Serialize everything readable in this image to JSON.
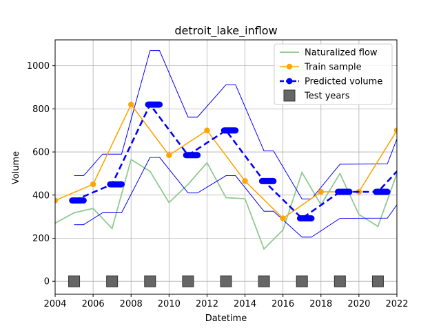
{
  "chart_data": {
    "type": "line",
    "title": "detroit_lake_inflow",
    "xlabel": "Datetime",
    "ylabel": "Volume",
    "xlim": [
      2004,
      2022
    ],
    "ylim": [
      -60,
      1120
    ],
    "x_ticks": [
      2004,
      2006,
      2008,
      2010,
      2012,
      2014,
      2016,
      2018,
      2020,
      2022
    ],
    "y_ticks": [
      0,
      200,
      400,
      600,
      800,
      1000
    ],
    "grid": true,
    "legend_position": "top-right",
    "colors": {
      "naturalized": "#8fca8f",
      "train": "#ffa500",
      "predicted": "#0000ff",
      "band": "#0000ff",
      "test_marker": "#666666"
    },
    "series": [
      {
        "name": "Naturalized flow",
        "style": "line",
        "x": [
          2004,
          2005,
          2006,
          2007,
          2008,
          2009,
          2010,
          2011,
          2012,
          2013,
          2014,
          2015,
          2016,
          2017,
          2018,
          2019,
          2020,
          2021,
          2022
        ],
        "y": [
          270,
          318,
          338,
          245,
          565,
          510,
          365,
          450,
          550,
          388,
          383,
          150,
          238,
          505,
          355,
          500,
          310,
          255,
          500
        ]
      },
      {
        "name": "Train sample",
        "style": "line-marker",
        "x": [
          2004,
          2006,
          2008,
          2010,
          2012,
          2014,
          2016,
          2018,
          2020,
          2022
        ],
        "y": [
          375,
          450,
          820,
          585,
          700,
          465,
          292,
          415,
          415,
          700
        ]
      },
      {
        "name": "Predicted volume",
        "style": "dashed-marker",
        "x": [
          2005,
          2007,
          2009,
          2011,
          2013,
          2015,
          2017,
          2019,
          2021,
          2022
        ],
        "y": [
          375,
          450,
          820,
          585,
          700,
          465,
          292,
          415,
          415,
          510
        ]
      },
      {
        "name": "Test years",
        "style": "square-marker",
        "x": [
          2005,
          2007,
          2009,
          2011,
          2013,
          2015,
          2017,
          2019,
          2021
        ],
        "y": [
          0,
          0,
          0,
          0,
          0,
          0,
          0,
          0,
          0
        ]
      }
    ],
    "band_upper": {
      "x": [
        2005,
        2005.5,
        2006.5,
        2007.5,
        2009,
        2009.5,
        2011,
        2011.5,
        2013,
        2013.5,
        2015,
        2015.5,
        2017,
        2017.5,
        2019,
        2021.5,
        2022
      ],
      "y": [
        490,
        490,
        590,
        590,
        1070,
        1070,
        762,
        762,
        912,
        912,
        605,
        605,
        382,
        382,
        543,
        545,
        660
      ]
    },
    "band_lower": {
      "x": [
        2005,
        2005.5,
        2006.5,
        2007.5,
        2009,
        2009.5,
        2011,
        2011.5,
        2013,
        2013.5,
        2015,
        2015.5,
        2017,
        2017.5,
        2019,
        2021.5,
        2022
      ],
      "y": [
        263,
        263,
        318,
        318,
        575,
        575,
        410,
        410,
        490,
        490,
        325,
        325,
        205,
        205,
        292,
        293,
        355
      ]
    },
    "predicted_segments": {
      "x_start": [
        2004.9,
        2006.9,
        2008.9,
        2010.9,
        2012.9,
        2014.9,
        2016.9,
        2018.9,
        2020.9
      ],
      "x_end": [
        2005.5,
        2007.5,
        2009.5,
        2011.5,
        2013.5,
        2015.5,
        2017.5,
        2019.5,
        2021.5
      ],
      "y": [
        375,
        450,
        820,
        585,
        700,
        465,
        292,
        415,
        415
      ]
    }
  }
}
